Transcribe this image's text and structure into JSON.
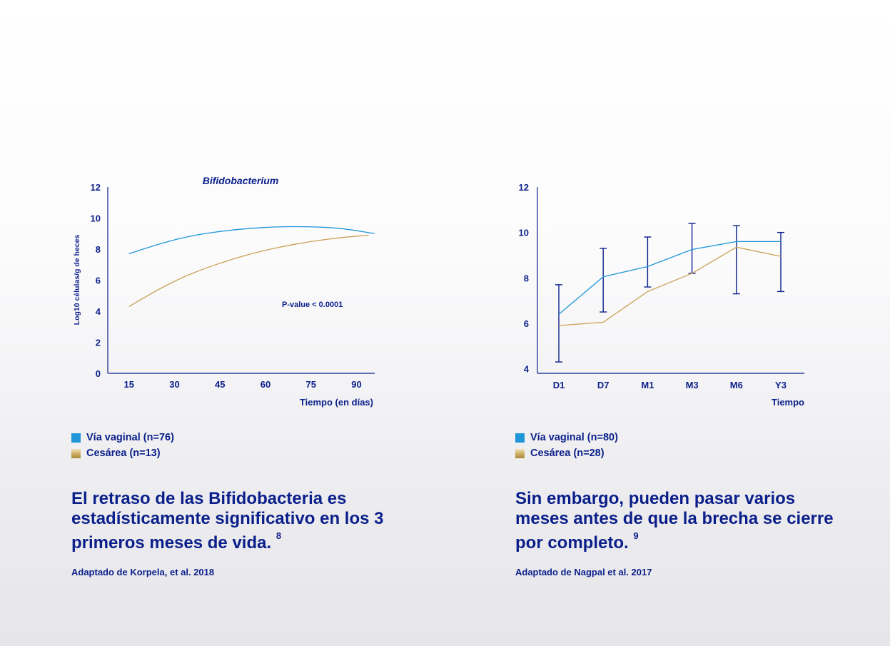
{
  "colors": {
    "axis": "#0b1f8a",
    "vaginal": "#1e96d8",
    "cesarea": "#c9a153",
    "text": "#0b1f8a"
  },
  "left_panel": {
    "y_axis_label": "Log10 células/g de heces",
    "legend": {
      "vaginal": "Vía vaginal (n=76)",
      "cesarea": "Cesárea (n=13)"
    },
    "headline": "El retraso de las Bifidobacteria es estadísticamente significativo en los 3 primeros meses de vida.",
    "footnote": "8",
    "source": "Adaptado de Korpela, et al. 2018"
  },
  "right_panel": {
    "legend": {
      "vaginal": "Vía vaginal (n=80)",
      "cesarea": "Cesárea (n=28)"
    },
    "headline": "Sin embargo, pueden pasar varios meses antes de que la brecha se cierre por completo.",
    "footnote": "9",
    "source": "Adaptado de Nagpal et al. 2017"
  },
  "chart_data": [
    {
      "type": "line",
      "title": "Bifidobacterium",
      "xlabel": "Tiempo (en días)",
      "ylabel": "Log10 células/g de heces",
      "x_ticks": [
        "15",
        "30",
        "45",
        "60",
        "75",
        "90"
      ],
      "y_ticks": [
        "0",
        "2",
        "4",
        "6",
        "8",
        "10",
        "12"
      ],
      "xlim": [
        8,
        96
      ],
      "ylim": [
        0,
        12
      ],
      "annotation": "P-value < 0.0001",
      "series": [
        {
          "name": "Vía vaginal (n=76)",
          "color": "#1e96d8",
          "x": [
            15,
            25,
            35,
            45,
            55,
            65,
            75,
            85,
            96
          ],
          "y": [
            7.7,
            8.35,
            8.85,
            9.15,
            9.35,
            9.45,
            9.45,
            9.35,
            9.0
          ]
        },
        {
          "name": "Cesárea (n=13)",
          "color": "#c9a153",
          "x": [
            15,
            25,
            35,
            45,
            55,
            65,
            75,
            85,
            94
          ],
          "y": [
            4.3,
            5.45,
            6.4,
            7.1,
            7.7,
            8.15,
            8.5,
            8.75,
            8.9
          ]
        }
      ],
      "grid": false
    },
    {
      "type": "line",
      "title": "",
      "xlabel": "Tiempo",
      "ylabel": "",
      "categories": [
        "D1",
        "D7",
        "M1",
        "M3",
        "M6",
        "Y3"
      ],
      "y_ticks": [
        "4",
        "6",
        "8",
        "10",
        "12"
      ],
      "ylim": [
        3.8,
        12
      ],
      "series": [
        {
          "name": "Vía vaginal (n=80)",
          "color": "#1e96d8",
          "values": [
            6.4,
            8.05,
            8.5,
            9.25,
            9.6,
            9.6
          ],
          "error_low": [
            4.3,
            6.5,
            7.6,
            8.2,
            7.3,
            7.4
          ],
          "error_high": [
            7.7,
            9.3,
            9.8,
            10.4,
            10.3,
            10.0
          ]
        },
        {
          "name": "Cesárea (n=28)",
          "color": "#c9a153",
          "values": [
            5.9,
            6.05,
            7.4,
            8.2,
            9.35,
            8.95
          ]
        }
      ],
      "grid": false
    }
  ]
}
